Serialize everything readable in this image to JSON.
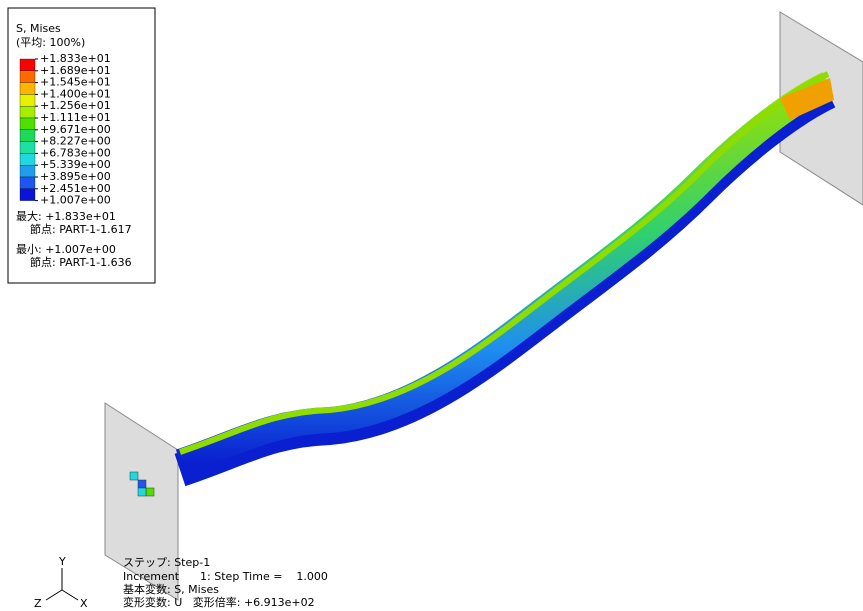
{
  "legend": {
    "title": "S, Mises",
    "subtitle": "(平均: 100%)",
    "labels": [
      "+1.833e+01",
      "+1.689e+01",
      "+1.545e+01",
      "+1.400e+01",
      "+1.256e+01",
      "+1.111e+01",
      "+9.671e+00",
      "+8.227e+00",
      "+6.783e+00",
      "+5.339e+00",
      "+3.895e+00",
      "+2.451e+00",
      "+1.007e+00"
    ],
    "colors": [
      "#ff0000",
      "#ff6a00",
      "#ffb400",
      "#e6f000",
      "#a8ec00",
      "#4fe000",
      "#1ed85a",
      "#1ee0a0",
      "#1fd8e0",
      "#1f9ef0",
      "#1f55f0",
      "#0a14d8"
    ],
    "max": "最大: +1.833e+01",
    "max_node": "節点: PART-1-1.617",
    "min": "最小: +1.007e+00",
    "min_node": "節点: PART-1-1.636"
  },
  "status": [
    "ステップ: Step-1",
    "Increment      1: Step Time =    1.000",
    "基本変数: S, Mises",
    "変形変数: U   変形倍率: +6.913e+02"
  ],
  "triad": {
    "y": "Y",
    "z": "Z",
    "x": "X"
  }
}
